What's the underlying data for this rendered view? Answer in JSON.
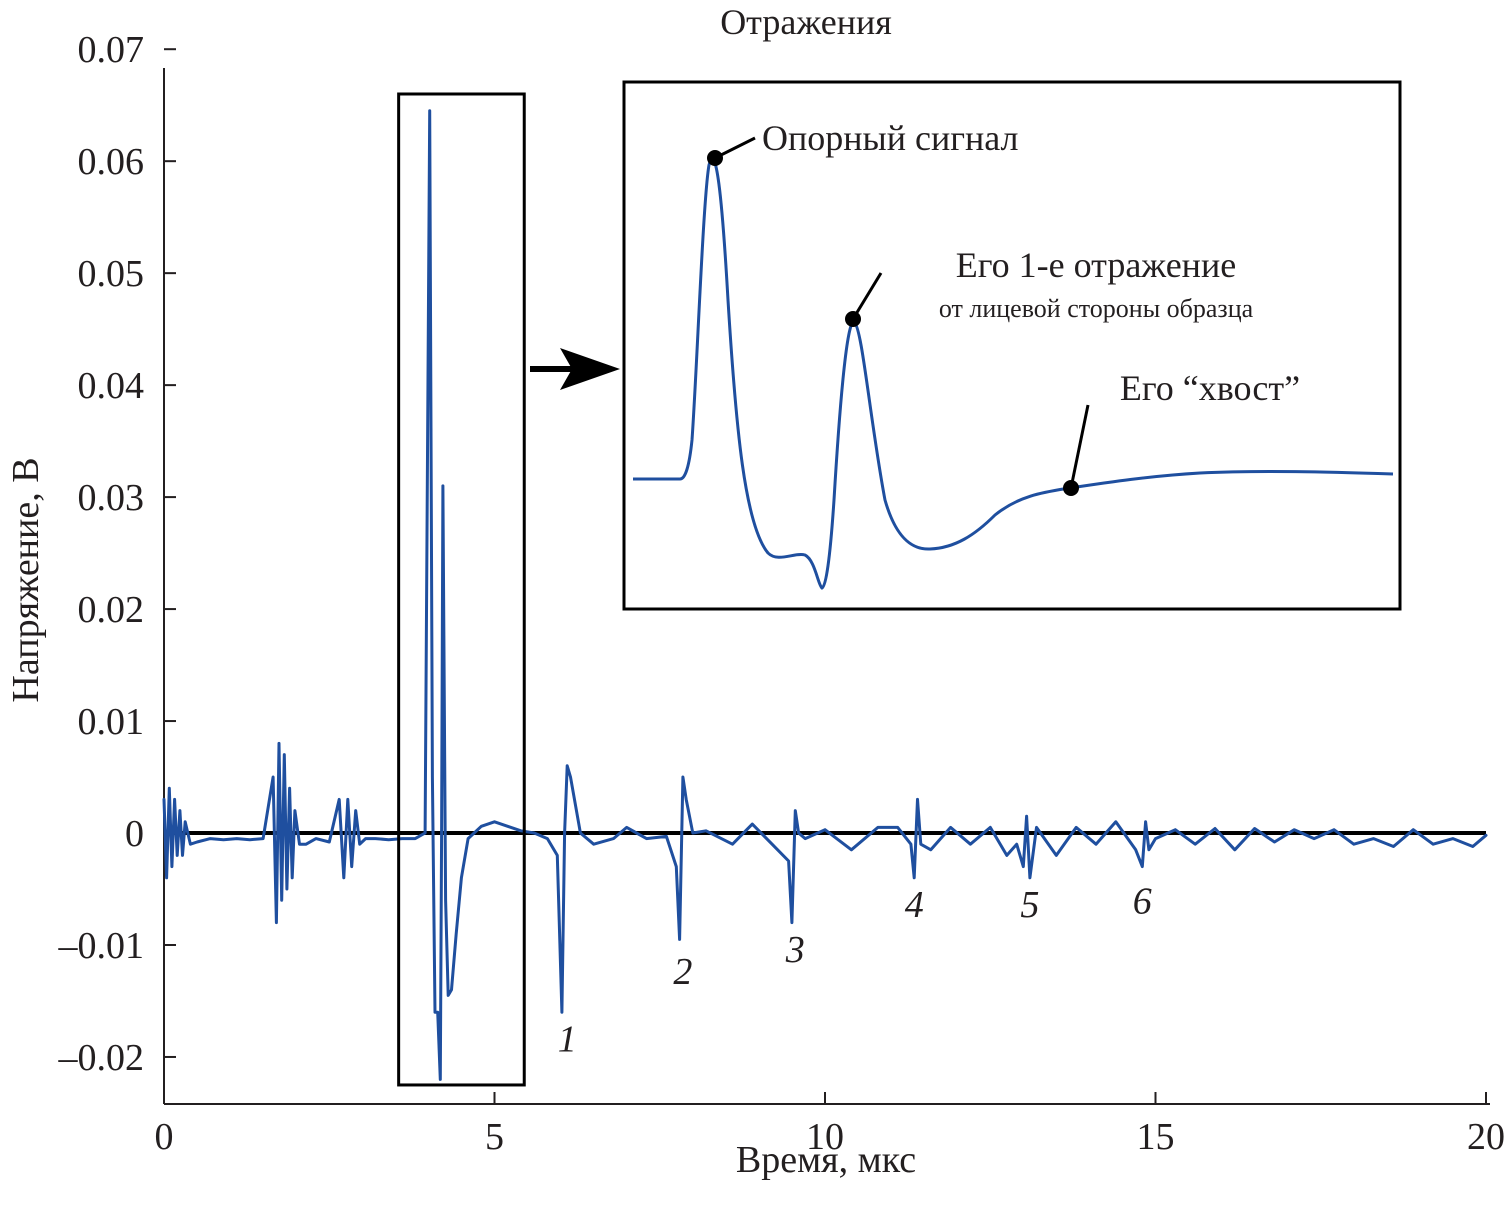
{
  "chart_data": {
    "type": "line",
    "title": "Отражения",
    "xlabel": "Время, мкс",
    "ylabel": "Напряжение, В",
    "xlim": [
      0,
      20
    ],
    "ylim": [
      -0.0242,
      0.0685
    ],
    "x_ticks": [
      {
        "value": 0,
        "label": "0"
      },
      {
        "value": 5,
        "label": "5"
      },
      {
        "value": 10,
        "label": "10"
      },
      {
        "value": 15,
        "label": "15"
      },
      {
        "value": 20,
        "label": "20"
      }
    ],
    "y_ticks": [
      {
        "value": 0.07,
        "label": "0.07"
      },
      {
        "value": 0.06,
        "label": "0.06"
      },
      {
        "value": 0.05,
        "label": "0.05"
      },
      {
        "value": 0.04,
        "label": "0.04"
      },
      {
        "value": 0.03,
        "label": "0.03"
      },
      {
        "value": 0.02,
        "label": "0.02"
      },
      {
        "value": 0.01,
        "label": "0.01"
      },
      {
        "value": 0,
        "label": "0"
      },
      {
        "value": -0.01,
        "label": "–0.01"
      },
      {
        "value": -0.02,
        "label": "–0.02"
      }
    ],
    "grid": false,
    "zero_line": true,
    "series_color": "#1f4f9f",
    "series": [
      {
        "x": [
          0,
          0.04,
          0.08,
          0.12,
          0.16,
          0.2,
          0.24,
          0.28,
          0.32,
          0.4,
          0.5,
          0.7,
          0.9,
          1.1,
          1.3,
          1.5,
          1.65,
          1.7,
          1.74,
          1.78,
          1.82,
          1.86,
          1.9,
          1.94,
          1.98,
          2.05,
          2.15,
          2.3,
          2.5,
          2.65,
          2.72,
          2.78,
          2.84,
          2.9,
          2.96,
          3.05,
          3.2,
          3.4,
          3.6,
          3.8,
          3.95,
          4.02,
          4.06,
          4.1,
          4.14,
          4.18,
          4.2,
          4.22,
          4.26,
          4.3,
          4.35,
          4.42,
          4.5,
          4.6,
          4.8,
          5.0,
          5.2,
          5.4,
          5.6,
          5.8,
          5.95,
          6.02,
          6.06,
          6.1,
          6.15,
          6.3,
          6.5,
          6.8,
          7.0,
          7.3,
          7.6,
          7.75,
          7.8,
          7.85,
          7.9,
          8.0,
          8.2,
          8.6,
          8.9,
          9.2,
          9.45,
          9.5,
          9.55,
          9.6,
          9.7,
          10.0,
          10.4,
          10.8,
          11.1,
          11.3,
          11.35,
          11.4,
          11.45,
          11.6,
          11.9,
          12.2,
          12.5,
          12.75,
          12.9,
          13.0,
          13.05,
          13.1,
          13.2,
          13.5,
          13.8,
          14.1,
          14.4,
          14.7,
          14.8,
          14.85,
          14.9,
          15.0,
          15.3,
          15.6,
          15.9,
          16.2,
          16.5,
          16.8,
          17.1,
          17.4,
          17.7,
          18.0,
          18.3,
          18.6,
          18.9,
          19.2,
          19.5,
          19.8,
          20.0
        ],
        "y": [
          0.003,
          -0.004,
          0.004,
          -0.003,
          0.003,
          -0.002,
          0.002,
          -0.002,
          0.001,
          -0.001,
          -0.0008,
          -0.0005,
          -0.0006,
          -0.0005,
          -0.0006,
          -0.0005,
          0.005,
          -0.008,
          0.008,
          -0.006,
          0.007,
          -0.005,
          0.004,
          -0.004,
          0.002,
          -0.001,
          -0.001,
          -0.0005,
          -0.0008,
          0.003,
          -0.004,
          0.003,
          -0.003,
          0.002,
          -0.001,
          -0.0005,
          -0.0005,
          -0.0006,
          -0.0005,
          -0.0005,
          0.0,
          0.0645,
          0.005,
          -0.016,
          -0.016,
          -0.022,
          0.0,
          0.031,
          -0.006,
          -0.0145,
          -0.014,
          -0.009,
          -0.004,
          -0.0005,
          0.0006,
          0.001,
          0.0006,
          0.0002,
          0.0,
          -0.0005,
          -0.002,
          -0.016,
          0.0,
          0.006,
          0.005,
          0.0,
          -0.001,
          -0.0005,
          0.0005,
          -0.0005,
          -0.0003,
          -0.003,
          -0.0095,
          0.005,
          0.003,
          0.0,
          0.0002,
          -0.001,
          0.0008,
          -0.001,
          -0.0025,
          -0.008,
          0.002,
          0.0,
          -0.0005,
          0.0003,
          -0.0015,
          0.0005,
          0.0005,
          -0.001,
          -0.004,
          0.003,
          -0.001,
          -0.0015,
          0.0005,
          -0.001,
          0.0005,
          -0.002,
          -0.001,
          -0.003,
          0.0015,
          -0.004,
          0.0005,
          -0.002,
          0.0005,
          -0.001,
          0.001,
          -0.0015,
          -0.003,
          0.001,
          -0.0015,
          -0.0005,
          0.0003,
          -0.001,
          0.0004,
          -0.0015,
          0.0004,
          -0.0008,
          0.0003,
          -0.0005,
          0.0003,
          -0.001,
          -0.0005,
          -0.0012,
          0.0003,
          -0.001,
          -0.0005,
          -0.0012,
          -0.0002
        ]
      }
    ],
    "zoom_box": {
      "x": [
        3.55,
        5.45
      ],
      "y": [
        -0.0225,
        0.066
      ]
    },
    "reflection_labels": [
      {
        "label": "1",
        "x": 6.1,
        "y": -0.0195
      },
      {
        "label": "2",
        "x": 7.85,
        "y": -0.0135
      },
      {
        "label": "3",
        "x": 9.55,
        "y": -0.0115
      },
      {
        "label": "4",
        "x": 11.35,
        "y": -0.0075
      },
      {
        "label": "5",
        "x": 13.1,
        "y": -0.0075
      },
      {
        "label": "6",
        "x": 14.8,
        "y": -0.0072
      }
    ],
    "inset": {
      "annotations": [
        {
          "label": "Опорный сигнал"
        },
        {
          "label": "Его 1-е отражение",
          "sublabel": "от лицевой стороны образца"
        },
        {
          "label": "Его “хвост”"
        }
      ]
    }
  }
}
